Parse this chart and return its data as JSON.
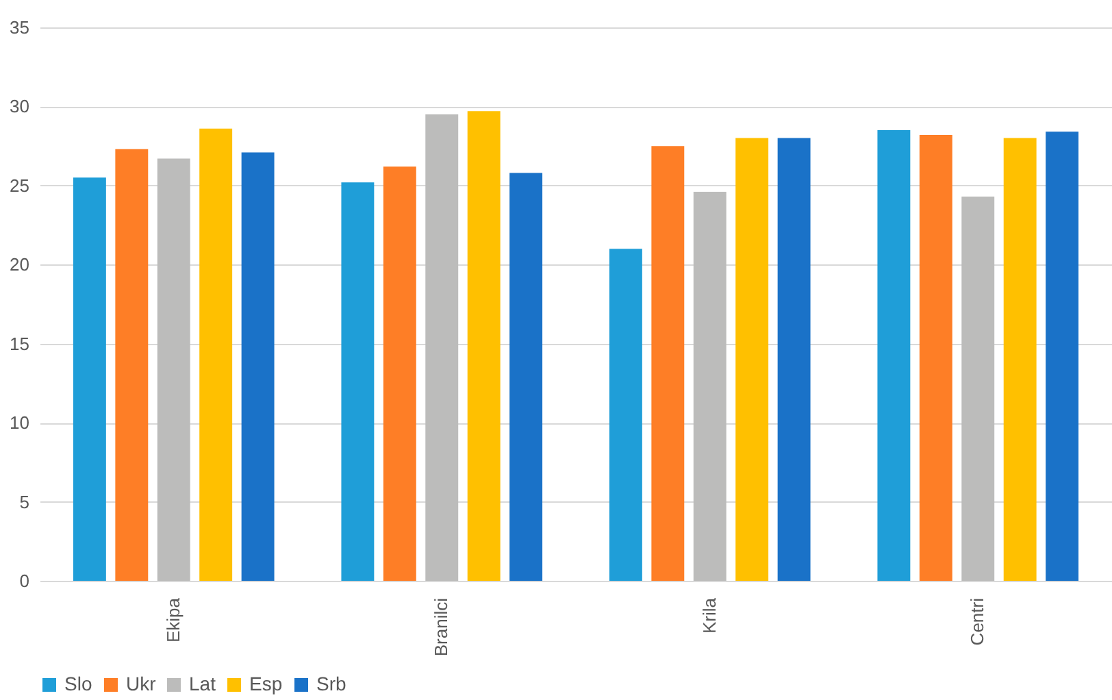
{
  "chart_data": {
    "type": "bar",
    "categories": [
      "Ekipa",
      "Branilci",
      "Krila",
      "Centri"
    ],
    "series": [
      {
        "name": "Slo",
        "color": "#1f9ed8",
        "values": [
          25.5,
          25.2,
          21.0,
          28.5
        ]
      },
      {
        "name": "Ukr",
        "color": "#fe7e26",
        "values": [
          27.3,
          26.2,
          27.5,
          28.2
        ]
      },
      {
        "name": "Lat",
        "color": "#bcbcbb",
        "values": [
          26.7,
          29.5,
          24.6,
          24.3
        ]
      },
      {
        "name": "Esp",
        "color": "#ffc000",
        "values": [
          28.6,
          29.7,
          28.0,
          28.0
        ]
      },
      {
        "name": "Srb",
        "color": "#1a72c8",
        "values": [
          27.1,
          25.8,
          28.0,
          28.4
        ]
      }
    ],
    "ylim": [
      0,
      35
    ],
    "yticks": [
      0,
      5,
      10,
      15,
      20,
      25,
      30,
      35
    ],
    "grid": "y",
    "legend": "bottom"
  }
}
